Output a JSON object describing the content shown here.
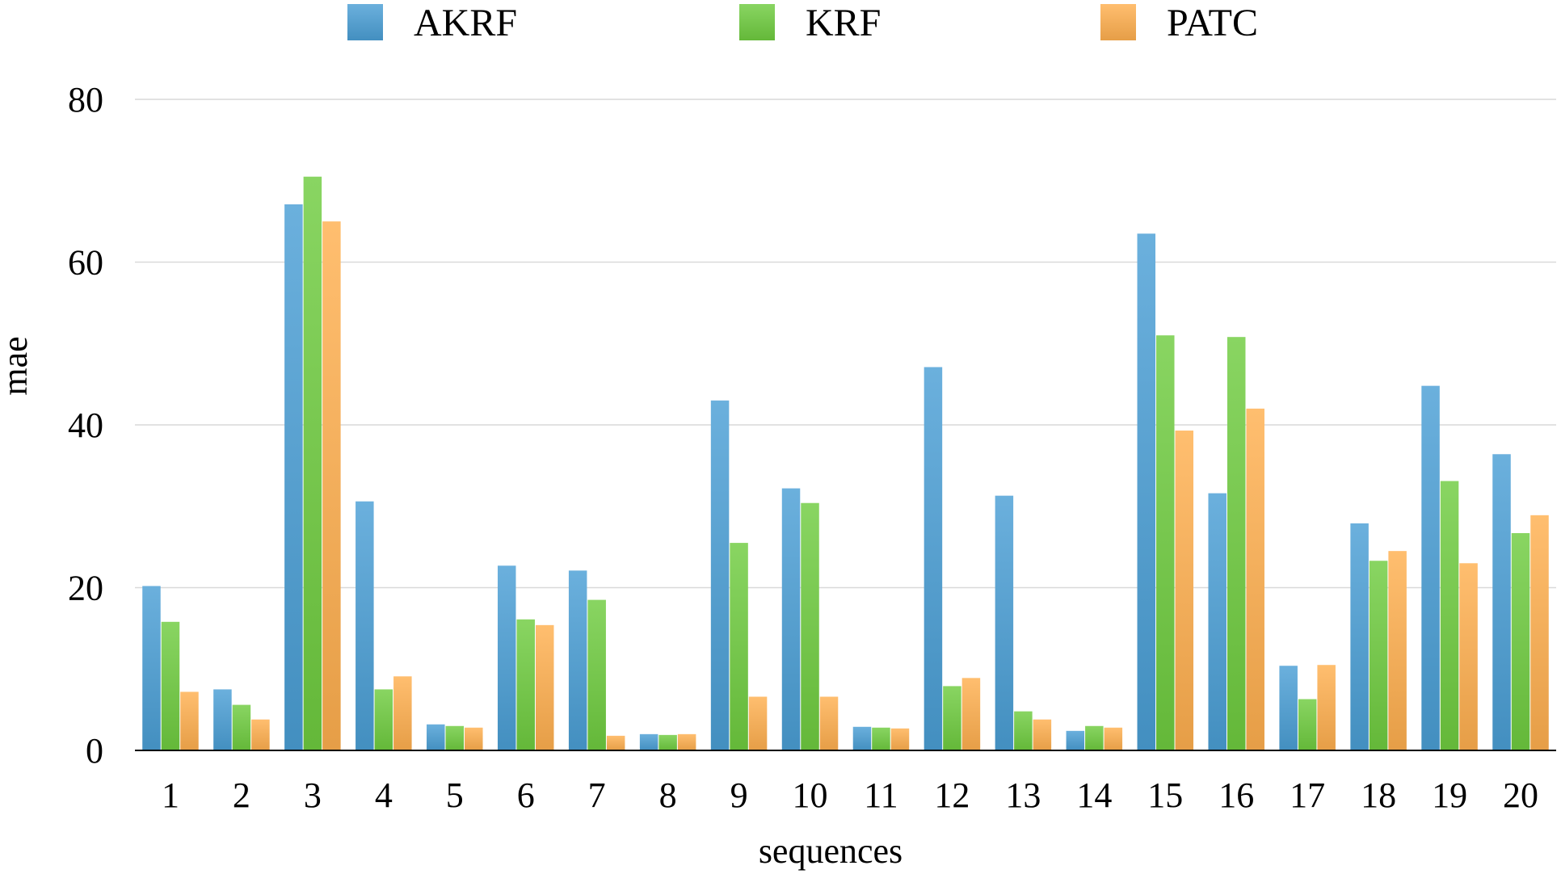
{
  "chart_data": {
    "type": "bar",
    "title": "",
    "xlabel": "sequences",
    "ylabel": "mae",
    "ylim": [
      0,
      80
    ],
    "yticks": [
      0,
      20,
      40,
      60,
      80
    ],
    "grid": true,
    "legend_position": "top-center",
    "categories": [
      "1",
      "2",
      "3",
      "4",
      "5",
      "6",
      "7",
      "8",
      "9",
      "10",
      "11",
      "12",
      "13",
      "14",
      "15",
      "16",
      "17",
      "18",
      "19",
      "20"
    ],
    "series": [
      {
        "name": "AKRF",
        "color": "#4a9fd5",
        "values": [
          20.2,
          7.5,
          67.1,
          30.6,
          3.2,
          22.7,
          22.1,
          2.0,
          43.0,
          32.2,
          2.9,
          47.1,
          31.3,
          2.4,
          63.5,
          31.6,
          10.4,
          27.9,
          44.8,
          36.4
        ]
      },
      {
        "name": "KRF",
        "color": "#6fcc3f",
        "values": [
          15.8,
          5.6,
          70.5,
          7.5,
          3.0,
          16.1,
          18.5,
          1.9,
          25.5,
          30.4,
          2.8,
          7.9,
          4.8,
          3.0,
          51.0,
          50.8,
          6.3,
          23.3,
          33.1,
          26.7
        ]
      },
      {
        "name": "PATC",
        "color": "#ffb04f",
        "values": [
          7.2,
          3.8,
          65.0,
          9.1,
          2.8,
          15.4,
          1.8,
          2.0,
          6.6,
          6.6,
          2.7,
          8.9,
          3.8,
          2.8,
          39.3,
          42.0,
          10.5,
          24.5,
          23.0,
          28.9
        ]
      }
    ]
  }
}
